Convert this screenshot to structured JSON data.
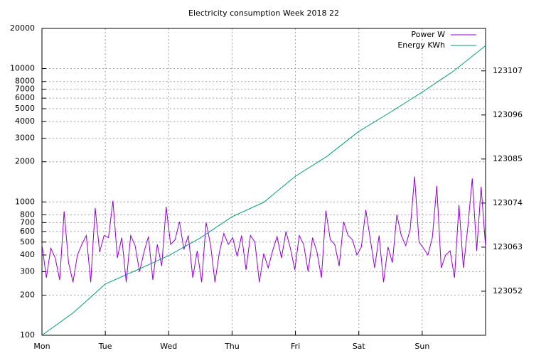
{
  "chart_data": {
    "type": "line",
    "title": "Electricity consumption Week 2018 22",
    "xlim": [
      0,
      7
    ],
    "xticks": [
      {
        "value": 0,
        "label": "Mon"
      },
      {
        "value": 1,
        "label": "Tue"
      },
      {
        "value": 2,
        "label": "Wed"
      },
      {
        "value": 3,
        "label": "Thu"
      },
      {
        "value": 4,
        "label": "Fri"
      },
      {
        "value": 5,
        "label": "Sat"
      },
      {
        "value": 6,
        "label": "Sun"
      }
    ],
    "ylim": [
      100,
      20000
    ],
    "ylog": true,
    "yticks": [
      100,
      200,
      300,
      400,
      500,
      600,
      700,
      800,
      1000,
      2000,
      3000,
      4000,
      5000,
      6000,
      7000,
      8000,
      10000,
      20000
    ],
    "y2lim": [
      123041,
      123117.6
    ],
    "y2ticks": [
      123052,
      123063,
      123074,
      123085,
      123096,
      123107
    ],
    "grid": true,
    "legend": "top-right",
    "series": [
      {
        "name": "Power W",
        "color": "#9400d3",
        "x": [
          0,
          0.07,
          0.14,
          0.21,
          0.28,
          0.35,
          0.42,
          0.49,
          0.56,
          0.63,
          0.7,
          0.77,
          0.84,
          0.91,
          0.98,
          1.05,
          1.12,
          1.19,
          1.26,
          1.33,
          1.4,
          1.47,
          1.54,
          1.61,
          1.68,
          1.75,
          1.82,
          1.89,
          1.96,
          2.03,
          2.1,
          2.17,
          2.24,
          2.31,
          2.38,
          2.45,
          2.52,
          2.59,
          2.66,
          2.73,
          2.8,
          2.87,
          2.94,
          3.01,
          3.08,
          3.15,
          3.22,
          3.29,
          3.36,
          3.43,
          3.5,
          3.57,
          3.64,
          3.71,
          3.78,
          3.85,
          3.92,
          3.99,
          4.06,
          4.13,
          4.2,
          4.27,
          4.34,
          4.41,
          4.48,
          4.55,
          4.62,
          4.69,
          4.76,
          4.83,
          4.9,
          4.97,
          5.04,
          5.11,
          5.18,
          5.25,
          5.32,
          5.39,
          5.46,
          5.53,
          5.6,
          5.67,
          5.74,
          5.81,
          5.88,
          5.95,
          6.02,
          6.09,
          6.16,
          6.23,
          6.3,
          6.37,
          6.44,
          6.51,
          6.58,
          6.65,
          6.72,
          6.79,
          6.86,
          6.93,
          7.0
        ],
        "values": [
          480,
          270,
          450,
          380,
          260,
          850,
          350,
          250,
          400,
          480,
          560,
          250,
          900,
          420,
          560,
          540,
          1020,
          380,
          540,
          250,
          560,
          470,
          300,
          420,
          550,
          260,
          480,
          330,
          920,
          480,
          520,
          710,
          440,
          560,
          270,
          430,
          250,
          700,
          480,
          250,
          420,
          580,
          480,
          540,
          390,
          560,
          310,
          560,
          500,
          250,
          410,
          320,
          430,
          550,
          380,
          600,
          450,
          310,
          560,
          480,
          300,
          540,
          420,
          270,
          860,
          520,
          480,
          330,
          710,
          560,
          520,
          400,
          460,
          870,
          530,
          320,
          560,
          250,
          460,
          350,
          800,
          560,
          470,
          620,
          1550,
          500,
          450,
          400,
          540,
          1320,
          320,
          400,
          430,
          270,
          950,
          320,
          650,
          1500,
          430,
          1300,
          460
        ]
      },
      {
        "name": "Energy KWh",
        "color": "#009e73",
        "axis": "y2",
        "x": [
          0,
          0.5,
          1,
          1.5,
          2,
          2.5,
          3,
          3.5,
          4,
          4.5,
          5,
          5.5,
          6,
          6.5,
          7
        ],
        "values": [
          123041,
          123046.7,
          123053.8,
          123057.3,
          123060.9,
          123065.3,
          123070.6,
          123074.2,
          123080.7,
          123085.7,
          123091.9,
          123096.7,
          123101.7,
          123107,
          123113.3
        ]
      }
    ]
  }
}
